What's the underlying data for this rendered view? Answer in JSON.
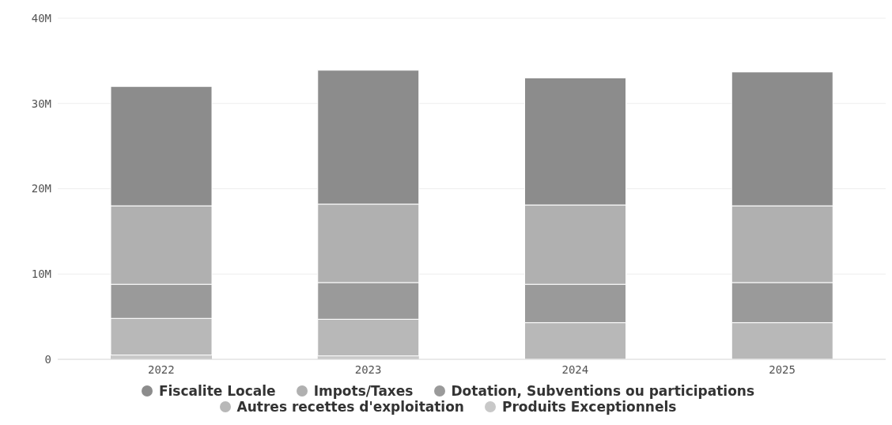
{
  "chart_data": {
    "type": "bar",
    "stacked": true,
    "categories": [
      "2022",
      "2023",
      "2024",
      "2025"
    ],
    "series": [
      {
        "name": "Produits Exceptionnels",
        "color": "#c8c8c8",
        "values": [
          0.5,
          0.4,
          0,
          0
        ]
      },
      {
        "name": "Autres recettes d'exploitation",
        "color": "#b8b8b8",
        "values": [
          4.3,
          4.3,
          4.3,
          4.3
        ]
      },
      {
        "name": "Dotation, Subventions ou participations",
        "color": "#9a9a9a",
        "values": [
          4.0,
          4.3,
          4.5,
          4.7
        ]
      },
      {
        "name": "Impots/Taxes",
        "color": "#b0b0b0",
        "values": [
          9.2,
          9.2,
          9.3,
          9.0
        ]
      },
      {
        "name": "Fiscalite Locale",
        "color": "#8c8c8c",
        "values": [
          14.0,
          15.7,
          14.9,
          15.7
        ]
      }
    ],
    "ylim": [
      0,
      40
    ],
    "yticks": [
      {
        "value": 0,
        "label": "0"
      },
      {
        "value": 10,
        "label": "10M"
      },
      {
        "value": 20,
        "label": "20M"
      },
      {
        "value": 30,
        "label": "30M"
      },
      {
        "value": 40,
        "label": "40M"
      }
    ],
    "grid": "y",
    "legend": "bottom"
  }
}
